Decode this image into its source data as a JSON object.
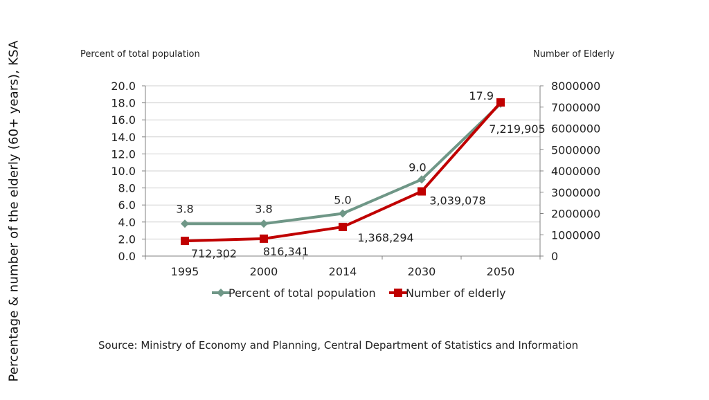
{
  "page": {
    "side_title": "Percentage & number of the elderly (60+ years), KSA",
    "left_axis_caption": "Percent of total population",
    "right_axis_caption": "Number of Elderly",
    "source": "Source: Ministry of Economy and Planning, Central Department of Statistics and Information"
  },
  "chart_data": {
    "type": "line",
    "title": "Percentage & number of the elderly (60+ years), KSA",
    "categories": [
      "1995",
      "2000",
      "2014",
      "2030",
      "2050"
    ],
    "ylabel": "Percent of total population",
    "y2label": "Number of Elderly",
    "ylim": [
      0,
      20
    ],
    "y2lim": [
      0,
      8000000
    ],
    "y_ticks": [
      "0.0",
      "2.0",
      "4.0",
      "6.0",
      "8.0",
      "10.0",
      "12.0",
      "14.0",
      "16.0",
      "18.0",
      "20.0"
    ],
    "y2_ticks": [
      "0",
      "1000000",
      "2000000",
      "3000000",
      "4000000",
      "5000000",
      "6000000",
      "7000000",
      "8000000"
    ],
    "grid": true,
    "legend_position": "bottom",
    "series": [
      {
        "name": "Percent of total population",
        "axis": "left",
        "color": "#6f9787",
        "marker": "diamond",
        "values": [
          3.8,
          3.8,
          5.0,
          9.0,
          17.9
        ],
        "labels": [
          "3.8",
          "3.8",
          "5.0",
          "9.0",
          "17.9"
        ]
      },
      {
        "name": "Number of elderly",
        "axis": "right",
        "color": "#c00000",
        "marker": "square",
        "values": [
          712302,
          816341,
          1368294,
          3039078,
          7219905
        ],
        "labels": [
          "712,302",
          "816,341",
          "1,368,294",
          "3,039,078",
          "7,219,905"
        ]
      }
    ]
  }
}
